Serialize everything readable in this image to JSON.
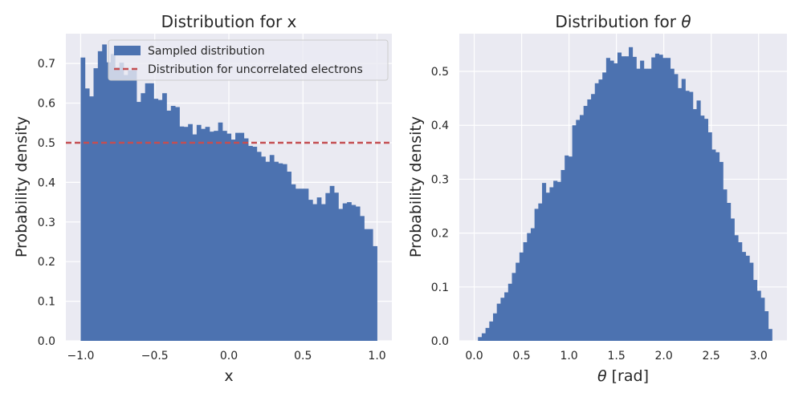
{
  "colors": {
    "background": "#ffffff",
    "plot_background": "#eaeaf2",
    "grid": "#ffffff",
    "bars": "#4c72b0",
    "reference_line": "#c44e52",
    "text": "#262626"
  },
  "chart_data": [
    {
      "type": "histogram",
      "title": "Distribution for x",
      "xlabel": "x",
      "ylabel": "Probability density",
      "xlim": [
        -1.1,
        1.1
      ],
      "ylim": [
        0,
        0.7752
      ],
      "xticks": [
        -1.0,
        -0.5,
        0.0,
        0.5,
        1.0
      ],
      "xtick_labels": [
        "−1.0",
        "−0.5",
        "0.0",
        "0.5",
        "1.0"
      ],
      "yticks": [
        0.0,
        0.1,
        0.2,
        0.3,
        0.4,
        0.5,
        0.6,
        0.7
      ],
      "ytick_labels": [
        "0.0",
        "0.1",
        "0.2",
        "0.3",
        "0.4",
        "0.5",
        "0.6",
        "0.7"
      ],
      "grid": true,
      "legend_position": "upper center",
      "bin_range": [
        -1.0,
        1.0
      ],
      "values": [
        0.715,
        0.637,
        0.617,
        0.688,
        0.731,
        0.748,
        0.703,
        0.724,
        0.69,
        0.702,
        0.671,
        0.683,
        0.683,
        0.603,
        0.625,
        0.65,
        0.65,
        0.611,
        0.608,
        0.625,
        0.581,
        0.593,
        0.59,
        0.541,
        0.54,
        0.547,
        0.521,
        0.545,
        0.535,
        0.54,
        0.528,
        0.53,
        0.551,
        0.53,
        0.523,
        0.508,
        0.525,
        0.525,
        0.511,
        0.492,
        0.49,
        0.477,
        0.465,
        0.452,
        0.469,
        0.452,
        0.448,
        0.446,
        0.427,
        0.395,
        0.384,
        0.384,
        0.384,
        0.356,
        0.345,
        0.362,
        0.345,
        0.373,
        0.391,
        0.374,
        0.333,
        0.347,
        0.35,
        0.343,
        0.339,
        0.315,
        0.282,
        0.282,
        0.239
      ],
      "series": [
        {
          "name": "Sampled distribution",
          "kind": "bars"
        },
        {
          "name": "Distribution for uncorrelated electrons",
          "kind": "hline",
          "y": 0.5,
          "style": "dashed"
        }
      ]
    },
    {
      "type": "histogram",
      "title": "Distribution for θ",
      "title_prefix": "Distribution for ",
      "title_symbol": "θ",
      "xlabel": "θ [rad]",
      "xlabel_symbol": "θ",
      "xlabel_suffix": " [rad]",
      "ylabel": "Probability density",
      "xlim": [
        -0.157,
        3.299
      ],
      "ylim": [
        0,
        0.57
      ],
      "xticks": [
        0.0,
        0.5,
        1.0,
        1.5,
        2.0,
        2.5,
        3.0
      ],
      "xtick_labels": [
        "0.0",
        "0.5",
        "1.0",
        "1.5",
        "2.0",
        "2.5",
        "3.0"
      ],
      "yticks": [
        0.0,
        0.1,
        0.2,
        0.3,
        0.4,
        0.5
      ],
      "ytick_labels": [
        "0.0",
        "0.1",
        "0.2",
        "0.3",
        "0.4",
        "0.5"
      ],
      "grid": true,
      "bin_range": [
        0.0,
        3.1416
      ],
      "values": [
        0.0,
        0.007,
        0.014,
        0.024,
        0.036,
        0.051,
        0.069,
        0.08,
        0.09,
        0.106,
        0.126,
        0.145,
        0.164,
        0.183,
        0.2,
        0.209,
        0.245,
        0.255,
        0.293,
        0.275,
        0.285,
        0.297,
        0.295,
        0.317,
        0.344,
        0.342,
        0.4,
        0.41,
        0.419,
        0.436,
        0.448,
        0.458,
        0.478,
        0.485,
        0.498,
        0.525,
        0.52,
        0.515,
        0.535,
        0.528,
        0.528,
        0.545,
        0.527,
        0.505,
        0.52,
        0.505,
        0.505,
        0.526,
        0.533,
        0.531,
        0.525,
        0.525,
        0.505,
        0.495,
        0.469,
        0.486,
        0.464,
        0.462,
        0.43,
        0.446,
        0.418,
        0.412,
        0.387,
        0.355,
        0.35,
        0.332,
        0.281,
        0.256,
        0.227,
        0.196,
        0.183,
        0.165,
        0.158,
        0.145,
        0.113,
        0.093,
        0.08,
        0.055,
        0.022
      ]
    }
  ]
}
